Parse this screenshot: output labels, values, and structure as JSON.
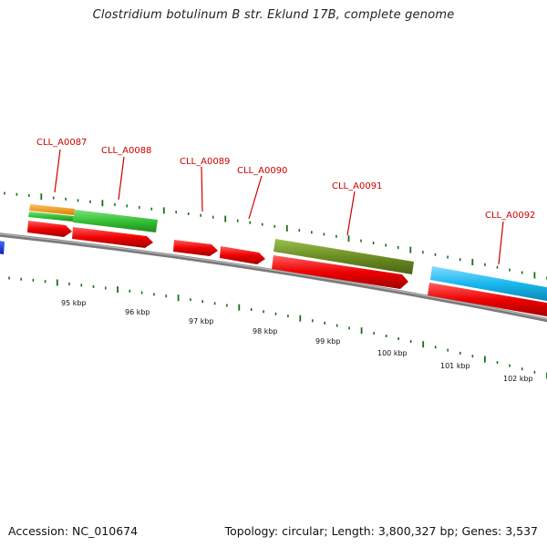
{
  "title": "Clostridium botulinum B str. Eklund 17B, complete genome",
  "footer": {
    "accession": "Accession: NC_010674",
    "summary": "Topology: circular; Length: 3,800,327 bp; Genes: 3,537"
  },
  "colors": {
    "backbone": "#7a7a7a",
    "cds": "#ee0000",
    "label": "#cc0000",
    "tick": "#1a6e1a",
    "orange": "#f39c12",
    "green": "#36c236",
    "olive": "#6b8e23",
    "cyan": "#18b7ee",
    "blue": "#1030ee"
  },
  "gene_labels": [
    {
      "id": "CLL_A0087",
      "text": "CLL_A0087"
    },
    {
      "id": "CLL_A0088",
      "text": "CLL_A0088"
    },
    {
      "id": "CLL_A0089",
      "text": "CLL_A0089"
    },
    {
      "id": "CLL_A0090",
      "text": "CLL_A0090"
    },
    {
      "id": "CLL_A0091",
      "text": "CLL_A0091"
    },
    {
      "id": "CLL_A0092",
      "text": "CLL_A0092"
    }
  ],
  "scale_labels": [
    "95 kbp",
    "96 kbp",
    "97 kbp",
    "98 kbp",
    "99 kbp",
    "100 kbp",
    "101 kbp",
    "102 kbp"
  ]
}
